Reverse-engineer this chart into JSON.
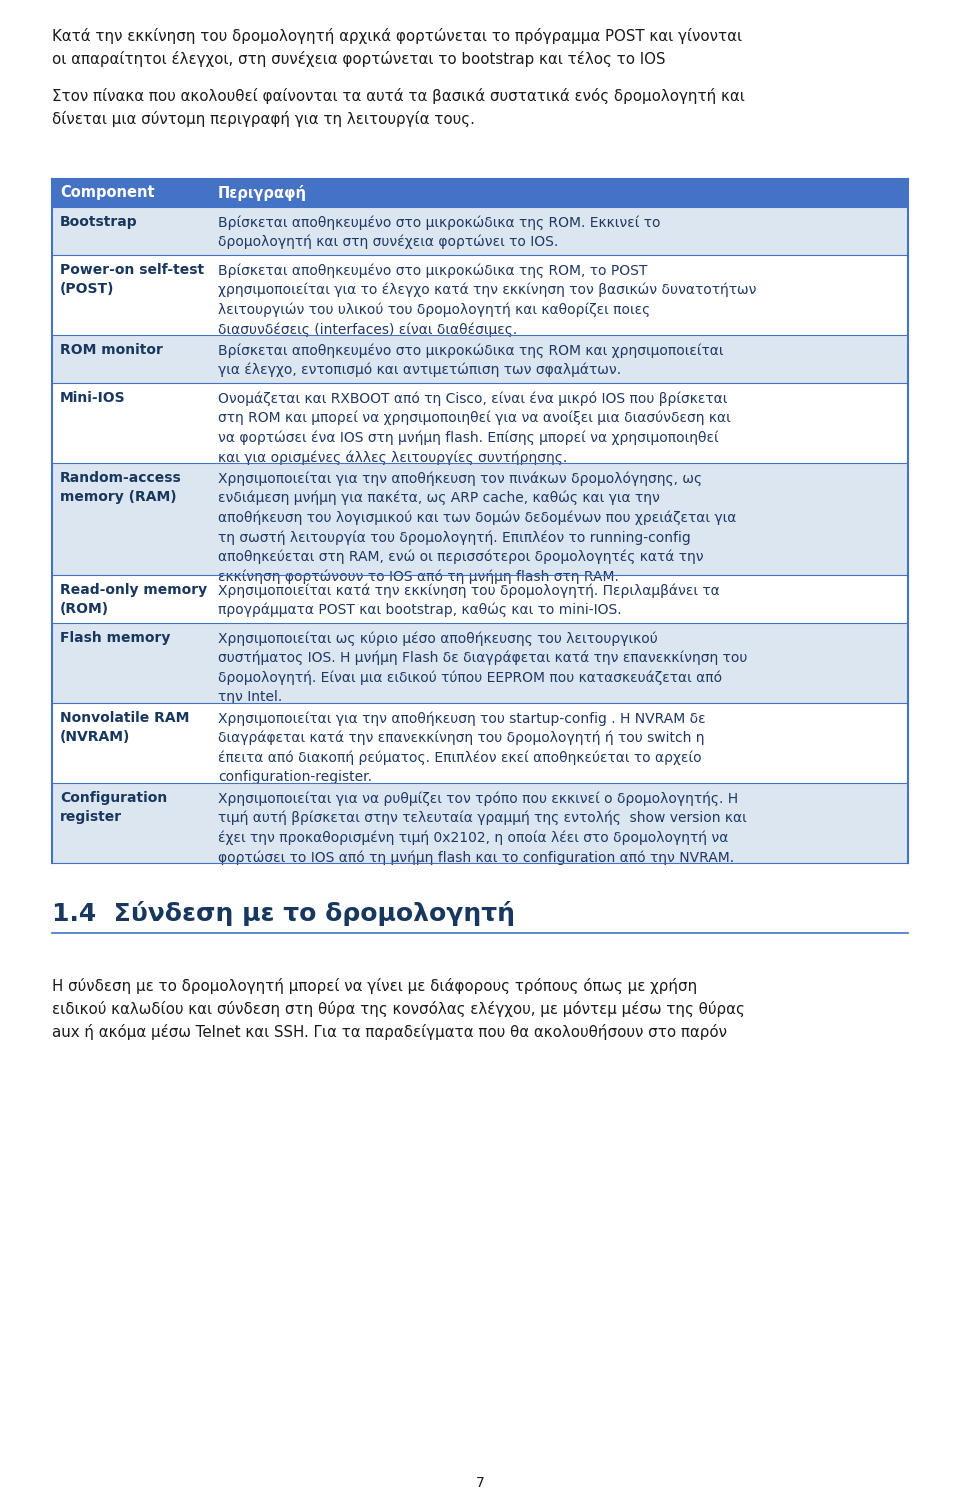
{
  "background_color": "#ffffff",
  "intro_text_1": "Κατά την εκκίνηση του δρομολογητή αρχικά φορτώνεται το πρόγραμμα POST και γίνονται\nοι απαραίτητοι έλεγχοι, στη συνέχεια φορτώνεται το bootstrap και τέλος το IOS",
  "intro_text_2": "Στον πίνακα που ακολουθεί φαίνονται τα αυτά τα βασικά συστατικά ενός δρομολογητή και\nδίνεται μια σύντομη περιγραφή για τη λειτουργία τους.",
  "header_col1": "Component",
  "header_col2": "Περιγραφή",
  "header_bg": "#4472c4",
  "header_text_color": "#ffffff",
  "component_color": "#17375e",
  "desc_color": "#1f3864",
  "table_border_color": "#4472c4",
  "rows": [
    {
      "component": "Bootstrap",
      "description": "Βρίσκεται αποθηκευμένο στο μικροκώδικα της ROM. Εκκινεί το\nδρομολογητή και στη συνέχεια φορτώνει το IOS.",
      "bg": "#dce6f1",
      "desc_lines": 2
    },
    {
      "component": "Power-on self-test\n(POST)",
      "description": "Βρίσκεται αποθηκευμένο στο μικροκώδικα της ROM, το POST\nχρησιμοποιείται για το έλεγχο κατά την εκκίνηση τον βασικών δυνατοτήτων\nλειτουργιών του υλικού του δρομολογητή και καθορίζει ποιες\nδιασυνδέσεις (interfaces) είναι διαθέσιμες.",
      "bg": "#ffffff",
      "desc_lines": 4
    },
    {
      "component": "ROM monitor",
      "description": "Βρίσκεται αποθηκευμένο στο μικροκώδικα της ROM και χρησιμοποιείται\nγια έλεγχο, εντοπισμό και αντιμετώπιση των σφαλμάτων.",
      "bg": "#dce6f1",
      "desc_lines": 2
    },
    {
      "component": "Mini-IOS",
      "description": "Ονομάζεται και RXBOOT από τη Cisco, είναι ένα μικρό IOS που βρίσκεται\nστη ROM και μπορεί να χρησιμοποιηθεί για να ανοίξει μια διασύνδεση και\nνα φορτώσει ένα IOS στη μνήμη flash. Επίσης μπορεί να χρησιμοποιηθεί\nκαι για ορισμένες άλλες λειτουργίες συντήρησης.",
      "bg": "#ffffff",
      "desc_lines": 4
    },
    {
      "component": "Random-access\nmemory (RAM)",
      "description": "Χρησιμοποιείται για την αποθήκευση τον πινάκων δρομολόγησης, ως\nενδιάμεση μνήμη για πακέτα, ως ARP cache, καθώς και για την\nαποθήκευση του λογισμικού και των δομών δεδομένων που χρειάζεται για\nτη σωστή λειτουργία του δρομολογητή. Επιπλέον το running-config\nαποθηκεύεται στη RAM, ενώ οι περισσότεροι δρομολογητές κατά την\nεκκίνηση φορτώνουν το IOS από τη μνήμη flash στη RAM.",
      "bg": "#dce6f1",
      "desc_lines": 6
    },
    {
      "component": "Read-only memory\n(ROM)",
      "description": "Χρησιμοποιείται κατά την εκκίνηση του δρομολογητή. Περιλαμβάνει τα\nπρογράμματα POST και bootstrap, καθώς και το mini-IOS.",
      "bg": "#ffffff",
      "desc_lines": 2
    },
    {
      "component": "Flash memory",
      "description": "Χρησιμοποιείται ως κύριο μέσο αποθήκευσης του λειτουργικού\nσυστήματος IOS. Η μνήμη Flash δε διαγράφεται κατά την επανεκκίνηση του\nδρομολογητή. Είναι μια ειδικού τύπου EEPROM που κατασκευάζεται από\nτην Intel.",
      "bg": "#dce6f1",
      "desc_lines": 4
    },
    {
      "component": "Nonvolatile RAM\n(NVRAM)",
      "description": "Χρησιμοποιείται για την αποθήκευση του startup-config . Η NVRAM δε\nδιαγράφεται κατά την επανεκκίνηση του δρομολογητή ή του switch η\nέπειτα από διακοπή ρεύματος. Επιπλέον εκεί αποθηκεύεται το αρχείο\nconfiguration-register.",
      "bg": "#ffffff",
      "desc_lines": 4
    },
    {
      "component": "Configuration\nregister",
      "description": "Χρησιμοποιείται για να ρυθμίζει τον τρόπο που εκκινεί ο δρομολογητής. Η\nτιμή αυτή βρίσκεται στην τελευταία γραμμή της εντολής  show version και\nέχει την προκαθορισμένη τιμή 0x2102, η οποία λέει στο δρομολογητή να\nφορτώσει το IOS από τη μνήμη flash και το configuration από την NVRAM.",
      "bg": "#dce6f1",
      "desc_lines": 4
    }
  ],
  "footer_title": "1.4  Σύνδεση με το δρομολογητή",
  "footer_text": "Η σύνδεση με το δρομολογητή μπορεί να γίνει με διάφορους τρόπους όπως με χρήση\nειδικού καλωδίου και σύνδεση στη θύρα της κονσόλας ελέγχου, με μόντεμ μέσω της θύρας\naux ή ακόμα μέσω Telnet και SSH. Για τα παραδείγματα που θα ακολουθήσουν στο παρόν",
  "page_number": "7"
}
